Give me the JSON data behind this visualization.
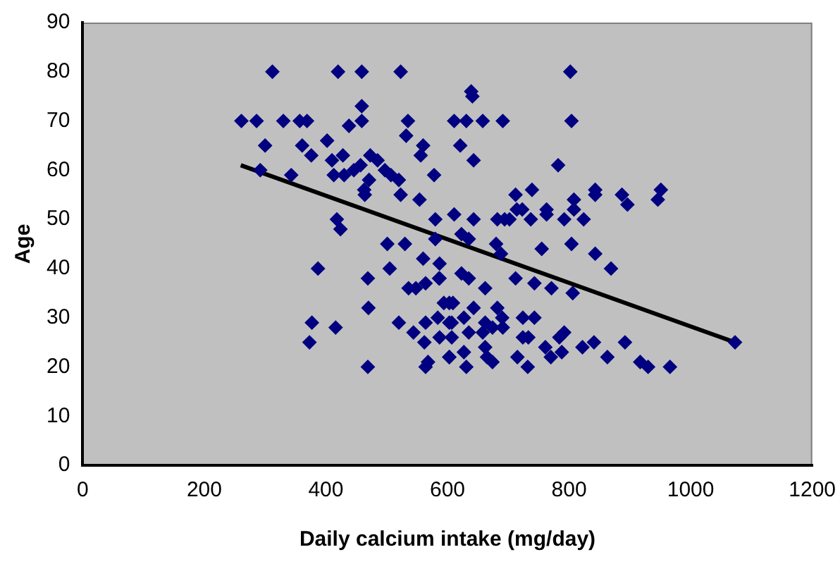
{
  "chart_data": {
    "type": "scatter",
    "xlabel": "Daily calcium intake (mg/day)",
    "ylabel": "Age",
    "xlim": [
      0,
      1200
    ],
    "xticks": [
      0,
      200,
      400,
      600,
      800,
      1000,
      1200
    ],
    "ylim": [
      0,
      90
    ],
    "yticks": [
      0,
      10,
      20,
      30,
      40,
      50,
      60,
      70,
      80,
      90
    ],
    "grid": false,
    "legend": false,
    "marker": "diamond",
    "series": [
      {
        "color": "#000080",
        "x": [
          312,
          420,
          459,
          523,
          802,
          459,
          261,
          286,
          330,
          357,
          369,
          438,
          459,
          535,
          611,
          631,
          658,
          691,
          804,
          300,
          361,
          376,
          402,
          532,
          560,
          556,
          410,
          428,
          292,
          343,
          413,
          430,
          446,
          457,
          473,
          485,
          497,
          507,
          520,
          471,
          463,
          464,
          523,
          554,
          578,
          611,
          418,
          424,
          501,
          530,
          560,
          580,
          580,
          387,
          469,
          505,
          587,
          587,
          639,
          641,
          621,
          643,
          782,
          643,
          712,
          739,
          714,
          723,
          763,
          763,
          808,
          808,
          843,
          843,
          887,
          896,
          946,
          951,
          682,
          694,
          702,
          737,
          792,
          824,
          623,
          635,
          680,
          688,
          755,
          804,
          843,
          869,
          470,
          536,
          548,
          564,
          586,
          594,
          609,
          520,
          544,
          564,
          584,
          587,
          562,
          603,
          607,
          603,
          568,
          564,
          469,
          377,
          416,
          373,
          712,
          743,
          771,
          806,
          623,
          635,
          662,
          603,
          643,
          682,
          690,
          662,
          607,
          627,
          635,
          658,
          674,
          691,
          724,
          743,
          724,
          733,
          792,
          784,
          761,
          770,
          788,
          822,
          841,
          863,
          892,
          917,
          930,
          966,
          1073,
          603,
          627,
          631,
          665,
          674,
          715,
          732,
          662
        ],
        "values": [
          80,
          80,
          80,
          80,
          80,
          73,
          70,
          70,
          70,
          70,
          70,
          69,
          70,
          70,
          70,
          70,
          70,
          70,
          70,
          65,
          65,
          63,
          66,
          67,
          65,
          63,
          62,
          63,
          60,
          59,
          59,
          59,
          60,
          61,
          63,
          62,
          60,
          59,
          58,
          58,
          56,
          55,
          55,
          54,
          59,
          51,
          50,
          48,
          45,
          45,
          42,
          50,
          46,
          40,
          38,
          40,
          41,
          38,
          76,
          75,
          65,
          62,
          61,
          50,
          55,
          56,
          52,
          52,
          52,
          51,
          54,
          52,
          56,
          55,
          55,
          53,
          54,
          56,
          50,
          50,
          50,
          50,
          50,
          50,
          47,
          46,
          45,
          43,
          44,
          45,
          43,
          40,
          32,
          36,
          36,
          37,
          38,
          33,
          33,
          29,
          27,
          29,
          30,
          26,
          25,
          29,
          26,
          22,
          21,
          20,
          20,
          29,
          28,
          25,
          38,
          37,
          36,
          35,
          39,
          38,
          36,
          33,
          32,
          32,
          30,
          29,
          29,
          30,
          27,
          27,
          28,
          28,
          30,
          30,
          26,
          26,
          27,
          26,
          24,
          22,
          23,
          24,
          25,
          22,
          25,
          21,
          20,
          20,
          25,
          22,
          23,
          20,
          22,
          21,
          22,
          20,
          24
        ]
      },
      {
        "type": "line",
        "color": "#000000",
        "marker": "none",
        "x": [
          260,
          1073
        ],
        "values": [
          61,
          25
        ]
      }
    ]
  }
}
